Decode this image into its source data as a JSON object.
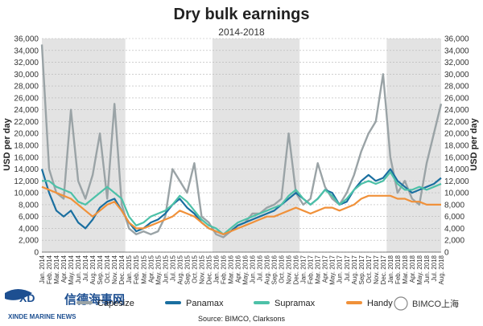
{
  "chart_data": {
    "type": "line",
    "title": "Dry bulk earnings",
    "subtitle": "2014-2018",
    "ylabel": "USD per day",
    "ylim": [
      0,
      36000
    ],
    "yticks": [
      0,
      2000,
      4000,
      6000,
      8000,
      10000,
      12000,
      14000,
      16000,
      18000,
      20000,
      22000,
      24000,
      26000,
      28000,
      30000,
      32000,
      34000,
      36000
    ],
    "ytick_labels": [
      "0",
      "2,000",
      "4,000",
      "6,000",
      "8,000",
      "10,000",
      "12,000",
      "14,000",
      "16,000",
      "18,000",
      "20,000",
      "22,000",
      "24,000",
      "26,000",
      "28,000",
      "30,000",
      "32,000",
      "34,000",
      "36,000"
    ],
    "grid": true,
    "shaded_years": [
      "2014",
      "2016",
      "2018"
    ],
    "x_labels": [
      "Jan. 2014",
      "Feb. 2014",
      "Mar. 2014",
      "Apr. 2014",
      "May. 2014",
      "Jun. 2014",
      "Jul. 2014",
      "Aug. 2014",
      "Sep. 2014",
      "Oct. 2014",
      "Nov. 2014",
      "Dec. 2014",
      "Jan. 2015",
      "Feb. 2015",
      "Mar. 2015",
      "Apr. 2015",
      "May. 2015",
      "Jun. 2015",
      "Jul. 2015",
      "Aug. 2015",
      "Sep. 2015",
      "Oct. 2015",
      "Nov. 2015",
      "Dec. 2015",
      "Jan. 2016",
      "Feb. 2016",
      "Mar. 2016",
      "Apr. 2016",
      "May. 2016",
      "Jun. 2016",
      "Jul. 2016",
      "Aug. 2016",
      "Sep. 2016",
      "Oct. 2016",
      "Nov. 2016",
      "Dec. 2016",
      "Jan. 2017",
      "Feb. 2017",
      "Mar. 2017",
      "Apr. 2017",
      "May. 2017",
      "Jun. 2017",
      "Jul. 2017",
      "Aug. 2017",
      "Sep. 2017",
      "Oct. 2017",
      "Nov. 2017",
      "Dec. 2017",
      "Jan. 2018",
      "Feb. 2018",
      "Mar. 2018",
      "Apr. 2018",
      "May. 2018",
      "Jun. 2018",
      "Jul. 2018",
      "Aug. 2018"
    ],
    "series": [
      {
        "name": "Capesize",
        "color": "#9aa3a6",
        "values": [
          35000,
          14000,
          10000,
          9000,
          24000,
          12000,
          9000,
          13000,
          20000,
          9000,
          25000,
          8000,
          4000,
          3000,
          3500,
          3000,
          3500,
          6000,
          14000,
          12000,
          10000,
          15000,
          6000,
          5000,
          3000,
          2500,
          3500,
          4500,
          5000,
          6500,
          6500,
          7500,
          8000,
          9000,
          20000,
          10000,
          8000,
          9000,
          15000,
          11000,
          9000,
          8000,
          10000,
          13000,
          17000,
          20000,
          22000,
          30000,
          16000,
          10000,
          12000,
          9000,
          8000,
          15000,
          20000,
          25000
        ]
      },
      {
        "name": "Panamax",
        "color": "#1a6fa0",
        "values": [
          14000,
          10000,
          7000,
          6000,
          7000,
          5000,
          4000,
          5500,
          7500,
          8500,
          9000,
          7000,
          5000,
          3500,
          4000,
          5000,
          5500,
          6500,
          8000,
          9000,
          7500,
          6500,
          5000,
          4000,
          3500,
          3000,
          3500,
          4500,
          5000,
          5500,
          6000,
          6500,
          7000,
          8000,
          9000,
          10000,
          9000,
          8000,
          9000,
          10500,
          10000,
          8000,
          8500,
          10500,
          12000,
          13000,
          12000,
          12500,
          14000,
          12000,
          11000,
          10000,
          10500,
          11000,
          11500,
          12500
        ]
      },
      {
        "name": "Supramax",
        "color": "#4dc1a8",
        "values": [
          12000,
          12000,
          11000,
          10500,
          10000,
          8500,
          8000,
          9000,
          10000,
          11000,
          10000,
          9000,
          6000,
          4500,
          5000,
          6000,
          6500,
          7000,
          8000,
          9500,
          8500,
          7000,
          5500,
          4500,
          4000,
          3000,
          4000,
          5000,
          5500,
          6000,
          6500,
          7000,
          7500,
          8000,
          9500,
          10500,
          9000,
          8000,
          9000,
          10500,
          9500,
          8000,
          9000,
          10500,
          11500,
          12000,
          11500,
          12000,
          13500,
          11500,
          10500,
          10500,
          11000,
          10500,
          11000,
          11500
        ]
      },
      {
        "name": "Handy",
        "color": "#f0913a",
        "values": [
          11000,
          10500,
          10000,
          9500,
          9000,
          8000,
          7000,
          6000,
          7000,
          8000,
          8500,
          7000,
          5000,
          4000,
          4000,
          4500,
          5000,
          5500,
          6000,
          7000,
          6500,
          6000,
          5000,
          4000,
          3500,
          3000,
          3500,
          4000,
          4500,
          5000,
          5500,
          6000,
          6000,
          6500,
          7000,
          7500,
          7000,
          6500,
          7000,
          7500,
          7500,
          7000,
          7500,
          8000,
          9000,
          9500,
          9500,
          9500,
          9500,
          9000,
          9000,
          8500,
          8500,
          8000,
          8000,
          8000
        ]
      }
    ]
  },
  "legend": [
    "Capesize",
    "Panamax",
    "Supramax",
    "Handy"
  ],
  "source": "Source: BIMCO, Clarksons",
  "logo": {
    "name": "XINDE MARINE NEWS",
    "chinese": "信德海事网"
  },
  "watermark": "BIMCO上海"
}
